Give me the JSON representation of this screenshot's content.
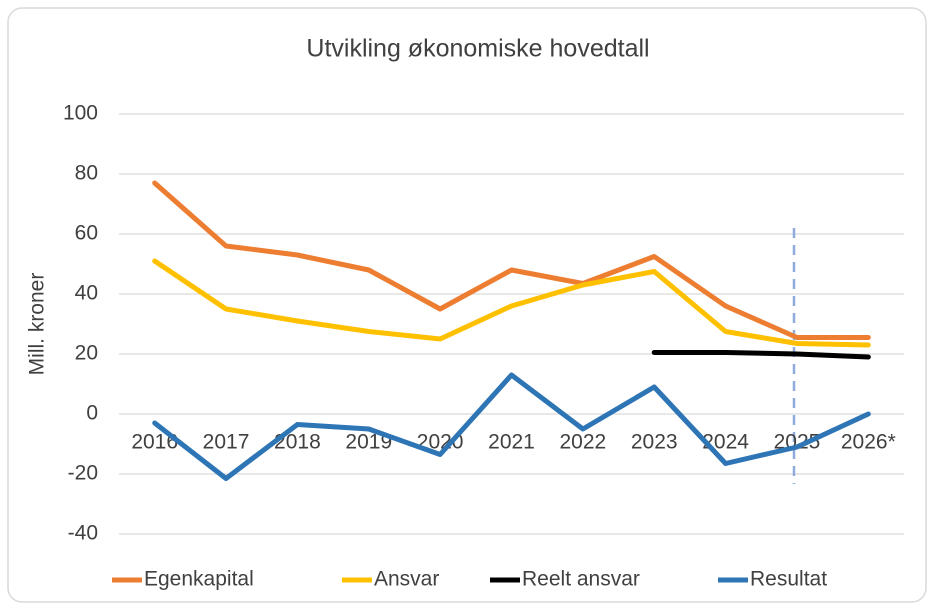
{
  "chart_data": {
    "type": "line",
    "title": "Utvikling økonomiske hovedtall",
    "y_label": "Mill. kroner",
    "categories": [
      "2016",
      "2017",
      "2018",
      "2019",
      "2020",
      "2021",
      "2022",
      "2023",
      "2024",
      "2025",
      "2026*"
    ],
    "series": [
      {
        "name": "Egenkapital",
        "color": "#ed7d31",
        "values": [
          77,
          56,
          53,
          48,
          35,
          48,
          43.5,
          52.5,
          36,
          25.5,
          25.5
        ]
      },
      {
        "name": "Ansvar",
        "color": "#ffc000",
        "values": [
          51,
          35,
          31,
          27.5,
          25,
          36,
          43,
          47.5,
          27.5,
          23.5,
          23
        ]
      },
      {
        "name": "Reelt ansvar",
        "color": "#000000",
        "values": [
          null,
          null,
          null,
          null,
          null,
          null,
          null,
          20.5,
          20.5,
          20,
          19
        ]
      },
      {
        "name": "Resultat",
        "color": "#2e75b6",
        "values": [
          -3,
          -21.5,
          -3.5,
          -5,
          -13.5,
          13,
          -5,
          9,
          -16.5,
          -11,
          0
        ]
      }
    ],
    "ylim": [
      -40,
      100
    ],
    "yticks": [
      -40,
      -20,
      0,
      20,
      40,
      60,
      80,
      100
    ],
    "grid": true,
    "legend": "bottom"
  }
}
